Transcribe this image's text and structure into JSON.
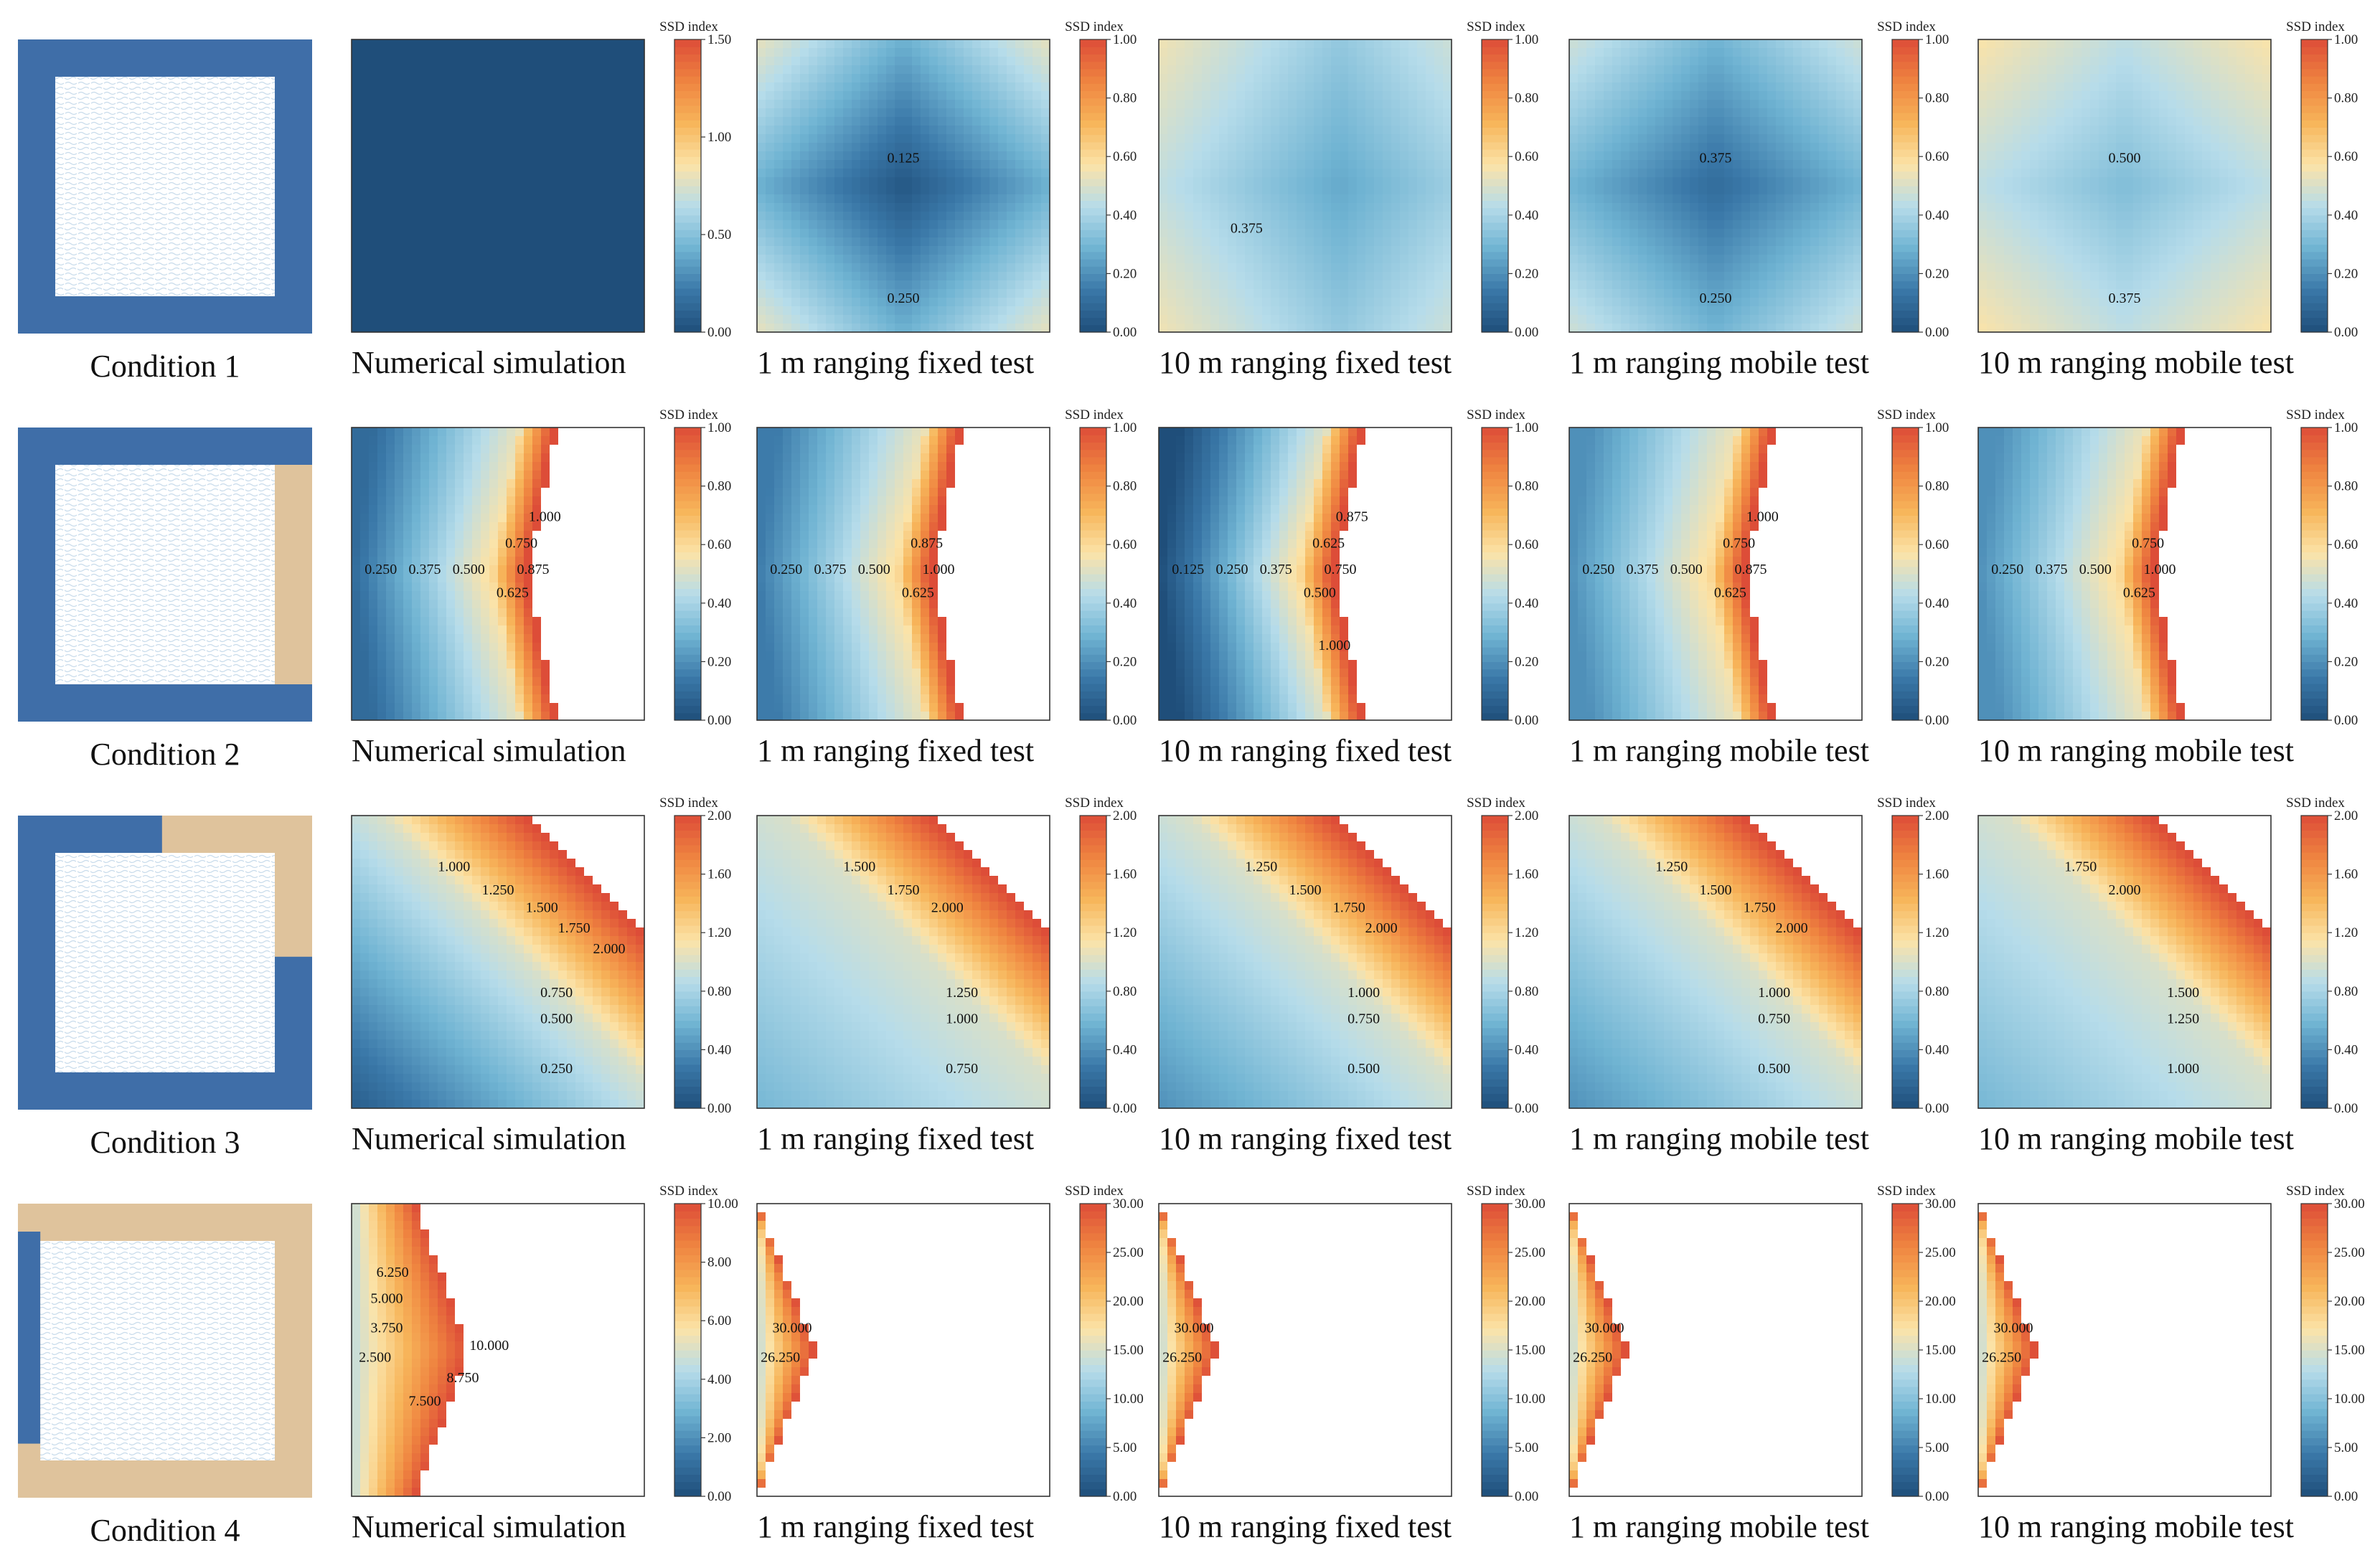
{
  "figure": {
    "colorbar_title": "SSD index",
    "colormap": [
      "#1f4e7a",
      "#3a78a8",
      "#6fb3d2",
      "#b6dcea",
      "#fbe3a8",
      "#f7b55a",
      "#ef8440",
      "#dd4d38"
    ],
    "wall_color": "#3f6ea8",
    "gap_color": "#dfc39c"
  },
  "rows": [
    {
      "condition_label": "Condition 1",
      "schematic": {
        "left": "wall",
        "right": "wall",
        "top": "wall",
        "bottom": "wall"
      },
      "panels": [
        {
          "caption": "Numerical simulation",
          "shape": "uniform",
          "ticks": [
            "0.00",
            "0.50",
            "1.00",
            "1.50"
          ],
          "vmax": 1.5,
          "levels": [],
          "labels": []
        },
        {
          "caption": "1 m ranging fixed test",
          "shape": "diamond",
          "ticks": [
            "0.00",
            "0.20",
            "0.40",
            "0.60",
            "0.80",
            "1.00"
          ],
          "vmax": 1.0,
          "levels": [
            0.0,
            0.125,
            0.25,
            0.375,
            0.5
          ],
          "labels": [
            "0.125",
            "0.250"
          ]
        },
        {
          "caption": "10 m ranging fixed test",
          "shape": "pentagon",
          "ticks": [
            "0.00",
            "0.20",
            "0.40",
            "0.60",
            "0.80",
            "1.00"
          ],
          "vmax": 1.0,
          "levels": [
            0.25,
            0.3,
            0.375,
            0.45
          ],
          "labels": [
            "0.375"
          ]
        },
        {
          "caption": "1 m ranging mobile test",
          "shape": "diamond",
          "ticks": [
            "0.00",
            "0.20",
            "0.40",
            "0.60",
            "0.80",
            "1.00"
          ],
          "vmax": 1.0,
          "levels": [
            0.08,
            0.15,
            0.25,
            0.375,
            0.42
          ],
          "labels": [
            "0.375",
            "0.250"
          ]
        },
        {
          "caption": "10 m ranging mobile test",
          "shape": "diamond",
          "ticks": [
            "0.00",
            "0.20",
            "0.40",
            "0.60",
            "0.80",
            "1.00"
          ],
          "vmax": 1.0,
          "levels": [
            0.3,
            0.35,
            0.375,
            0.45,
            0.5
          ],
          "labels": [
            "0.500",
            "0.375"
          ]
        }
      ]
    },
    {
      "condition_label": "Condition 2",
      "schematic": {
        "left": "wall",
        "right": "gap",
        "top": "wall",
        "bottom": "wall"
      },
      "panels": [
        {
          "caption": "Numerical simulation",
          "shape": "right_front",
          "ticks": [
            "0.00",
            "0.20",
            "0.40",
            "0.60",
            "0.80",
            "1.00"
          ],
          "vmax": 1.0,
          "levels": [
            0.1,
            0.25,
            0.375,
            0.5,
            0.625,
            0.75,
            0.875,
            1.0
          ],
          "labels": [
            "0.250",
            "0.375",
            "0.500",
            "0.625",
            "0.750",
            "0.875",
            "1.000"
          ]
        },
        {
          "caption": "1 m ranging fixed test",
          "shape": "right_front",
          "ticks": [
            "0.00",
            "0.20",
            "0.40",
            "0.60",
            "0.80",
            "1.00"
          ],
          "vmax": 1.0,
          "levels": [
            0.15,
            0.25,
            0.375,
            0.5,
            0.625,
            0.75,
            0.875,
            1.0
          ],
          "labels": [
            "0.250",
            "0.375",
            "0.500",
            "0.625",
            "0.875",
            "1.000"
          ]
        },
        {
          "caption": "10 m ranging fixed test",
          "shape": "right_front",
          "ticks": [
            "0.00",
            "0.20",
            "0.40",
            "0.60",
            "0.80",
            "1.00"
          ],
          "vmax": 1.0,
          "levels": [
            0.0,
            0.125,
            0.25,
            0.375,
            0.5,
            0.625,
            0.75,
            0.875,
            1.0
          ],
          "labels": [
            "0.125",
            "0.250",
            "0.375",
            "0.500",
            "0.625",
            "0.750",
            "0.875",
            "1.000"
          ]
        },
        {
          "caption": "1 m ranging mobile test",
          "shape": "right_front",
          "ticks": [
            "0.00",
            "0.20",
            "0.40",
            "0.60",
            "0.80",
            "1.00"
          ],
          "vmax": 1.0,
          "levels": [
            0.2,
            0.25,
            0.375,
            0.5,
            0.625,
            0.75,
            0.875,
            1.0
          ],
          "labels": [
            "0.250",
            "0.375",
            "0.500",
            "0.625",
            "0.750",
            "0.875",
            "1.000"
          ]
        },
        {
          "caption": "10 m ranging mobile test",
          "shape": "right_front",
          "ticks": [
            "0.00",
            "0.20",
            "0.40",
            "0.60",
            "0.80",
            "1.00"
          ],
          "vmax": 1.0,
          "levels": [
            0.2,
            0.25,
            0.375,
            0.5,
            0.625,
            0.75,
            0.875,
            1.0
          ],
          "labels": [
            "0.250",
            "0.375",
            "0.500",
            "0.625",
            "0.750",
            "1.000"
          ]
        }
      ]
    },
    {
      "condition_label": "Condition 3",
      "schematic": {
        "left": "wall",
        "right": "half",
        "top": "half",
        "bottom": "wall"
      },
      "panels": [
        {
          "caption": "Numerical simulation",
          "shape": "diagonal",
          "ticks": [
            "0.00",
            "0.40",
            "0.80",
            "1.20",
            "1.60",
            "2.00"
          ],
          "vmax": 2.0,
          "levels": [
            0.1,
            0.25,
            0.5,
            0.75,
            1.0,
            1.25,
            1.5,
            1.75,
            2.0
          ],
          "labels": [
            "0.250",
            "0.500",
            "0.750",
            "1.000",
            "1.250",
            "1.500",
            "1.750",
            "2.000"
          ]
        },
        {
          "caption": "1 m ranging fixed test",
          "shape": "diagonal",
          "ticks": [
            "0.00",
            "0.40",
            "0.80",
            "1.20",
            "1.60",
            "2.00"
          ],
          "vmax": 2.0,
          "levels": [
            0.6,
            0.75,
            1.0,
            1.25,
            1.5,
            1.75,
            2.0
          ],
          "labels": [
            "0.750",
            "1.000",
            "1.250",
            "1.500",
            "1.750",
            "2.000"
          ]
        },
        {
          "caption": "10 m ranging fixed test",
          "shape": "diagonal",
          "ticks": [
            "0.00",
            "0.40",
            "0.80",
            "1.20",
            "1.60",
            "2.00"
          ],
          "vmax": 2.0,
          "levels": [
            0.4,
            0.5,
            0.75,
            1.0,
            1.25,
            1.5,
            1.75,
            2.0
          ],
          "labels": [
            "0.500",
            "0.750",
            "1.000",
            "1.250",
            "1.500",
            "1.750",
            "2.000"
          ]
        },
        {
          "caption": "1 m ranging mobile test",
          "shape": "diagonal",
          "ticks": [
            "0.00",
            "0.40",
            "0.80",
            "1.20",
            "1.60",
            "2.00"
          ],
          "vmax": 2.0,
          "levels": [
            0.4,
            0.5,
            0.75,
            1.0,
            1.25,
            1.5,
            1.75,
            2.0
          ],
          "labels": [
            "0.500",
            "0.750",
            "1.000",
            "1.250",
            "1.500",
            "1.750",
            "2.000"
          ]
        },
        {
          "caption": "10 m ranging mobile test",
          "shape": "diagonal",
          "ticks": [
            "0.00",
            "0.40",
            "0.80",
            "1.20",
            "1.60",
            "2.00"
          ],
          "vmax": 2.0,
          "levels": [
            0.6,
            0.75,
            1.0,
            1.25,
            1.5,
            1.75,
            2.0
          ],
          "labels": [
            "1.000",
            "1.250",
            "1.500",
            "1.750",
            "2.000"
          ]
        }
      ]
    },
    {
      "condition_label": "Condition 4",
      "schematic": {
        "left": "partial",
        "right": "gap",
        "top": "gap",
        "bottom": "gap"
      },
      "panels": [
        {
          "caption": "Numerical simulation",
          "shape": "left_wedge",
          "ticks": [
            "0.00",
            "2.00",
            "4.00",
            "6.00",
            "8.00",
            "10.00"
          ],
          "vmax": 10.0,
          "levels": [
            2.5,
            3.75,
            5.0,
            6.25,
            7.5,
            8.75,
            10.0
          ],
          "labels": [
            "2.500",
            "3.750",
            "5.000",
            "6.250",
            "7.500",
            "8.750",
            "10.000"
          ]
        },
        {
          "caption": "1 m ranging fixed test",
          "shape": "left_wedge",
          "ticks": [
            "0.00",
            "5.00",
            "10.00",
            "15.00",
            "20.00",
            "25.00",
            "30.00"
          ],
          "vmax": 30.0,
          "levels": [
            26.25,
            30.0
          ],
          "labels": [
            "26.250",
            "30.000"
          ]
        },
        {
          "caption": "10 m ranging fixed test",
          "shape": "left_wedge",
          "ticks": [
            "0.00",
            "5.00",
            "10.00",
            "15.00",
            "20.00",
            "25.00",
            "30.00"
          ],
          "vmax": 30.0,
          "levels": [
            26.25,
            30.0
          ],
          "labels": [
            "26.250",
            "30.000"
          ]
        },
        {
          "caption": "1 m ranging mobile test",
          "shape": "left_wedge",
          "ticks": [
            "0.00",
            "5.00",
            "10.00",
            "15.00",
            "20.00",
            "25.00",
            "30.00"
          ],
          "vmax": 30.0,
          "levels": [
            26.25,
            30.0
          ],
          "labels": [
            "26.250",
            "30.000"
          ]
        },
        {
          "caption": "10 m ranging mobile test",
          "shape": "left_wedge",
          "ticks": [
            "0.00",
            "5.00",
            "10.00",
            "15.00",
            "20.00",
            "25.00",
            "30.00"
          ],
          "vmax": 30.0,
          "levels": [
            26.25,
            30.0
          ],
          "labels": [
            "26.250",
            "30.000"
          ]
        }
      ]
    }
  ],
  "chart_data": {
    "type": "heatmap",
    "title": "",
    "colorbar_label": "SSD index",
    "conditions": [
      "Condition 1",
      "Condition 2",
      "Condition 3",
      "Condition 4"
    ],
    "methods": [
      "Numerical simulation",
      "1 m ranging fixed test",
      "10 m ranging fixed test",
      "1 m ranging mobile test",
      "10 m ranging mobile test"
    ],
    "colorbar_ranges": [
      [
        0,
        1.5
      ],
      [
        0,
        1.0
      ],
      [
        0,
        2.0
      ],
      [
        0,
        10.0
      ],
      [
        0,
        30.0
      ]
    ],
    "contour_labels": {
      "Condition 1": [
        [],
        [
          "0.125",
          "0.250"
        ],
        [
          "0.375"
        ],
        [
          "0.375",
          "0.250"
        ],
        [
          "0.500",
          "0.375"
        ]
      ],
      "Condition 2": [
        [
          "0.250",
          "0.375",
          "0.500",
          "0.625",
          "0.750",
          "0.875",
          "1.000"
        ],
        [
          "0.250",
          "0.375",
          "0.500",
          "0.625",
          "0.875",
          "1.000"
        ],
        [
          "0.125",
          "0.250",
          "0.375",
          "0.500",
          "0.625",
          "0.750",
          "0.875",
          "1.000"
        ],
        [
          "0.250",
          "0.375",
          "0.500",
          "0.625",
          "0.750",
          "0.875",
          "1.000"
        ],
        [
          "0.250",
          "0.375",
          "0.500",
          "0.625",
          "0.750",
          "1.000"
        ]
      ],
      "Condition 3": [
        [
          "0.250",
          "0.500",
          "0.750",
          "1.000",
          "1.250",
          "1.500",
          "1.750",
          "2.000"
        ],
        [
          "0.750",
          "1.000",
          "1.250",
          "1.500",
          "1.750",
          "2.000"
        ],
        [
          "0.500",
          "0.750",
          "1.000",
          "1.250",
          "1.500",
          "1.750",
          "2.000"
        ],
        [
          "0.500",
          "0.750",
          "1.000",
          "1.250",
          "1.500",
          "1.750",
          "2.000"
        ],
        [
          "1.000",
          "1.250",
          "1.500",
          "1.750",
          "2.000"
        ]
      ],
      "Condition 4": [
        [
          "2.500",
          "3.750",
          "5.000",
          "6.250",
          "7.500",
          "8.750",
          "10.000"
        ],
        [
          "26.250",
          "30.000"
        ],
        [
          "26.250",
          "30.000"
        ],
        [
          "26.250",
          "30.000"
        ],
        [
          "26.250",
          "30.000"
        ]
      ]
    }
  }
}
